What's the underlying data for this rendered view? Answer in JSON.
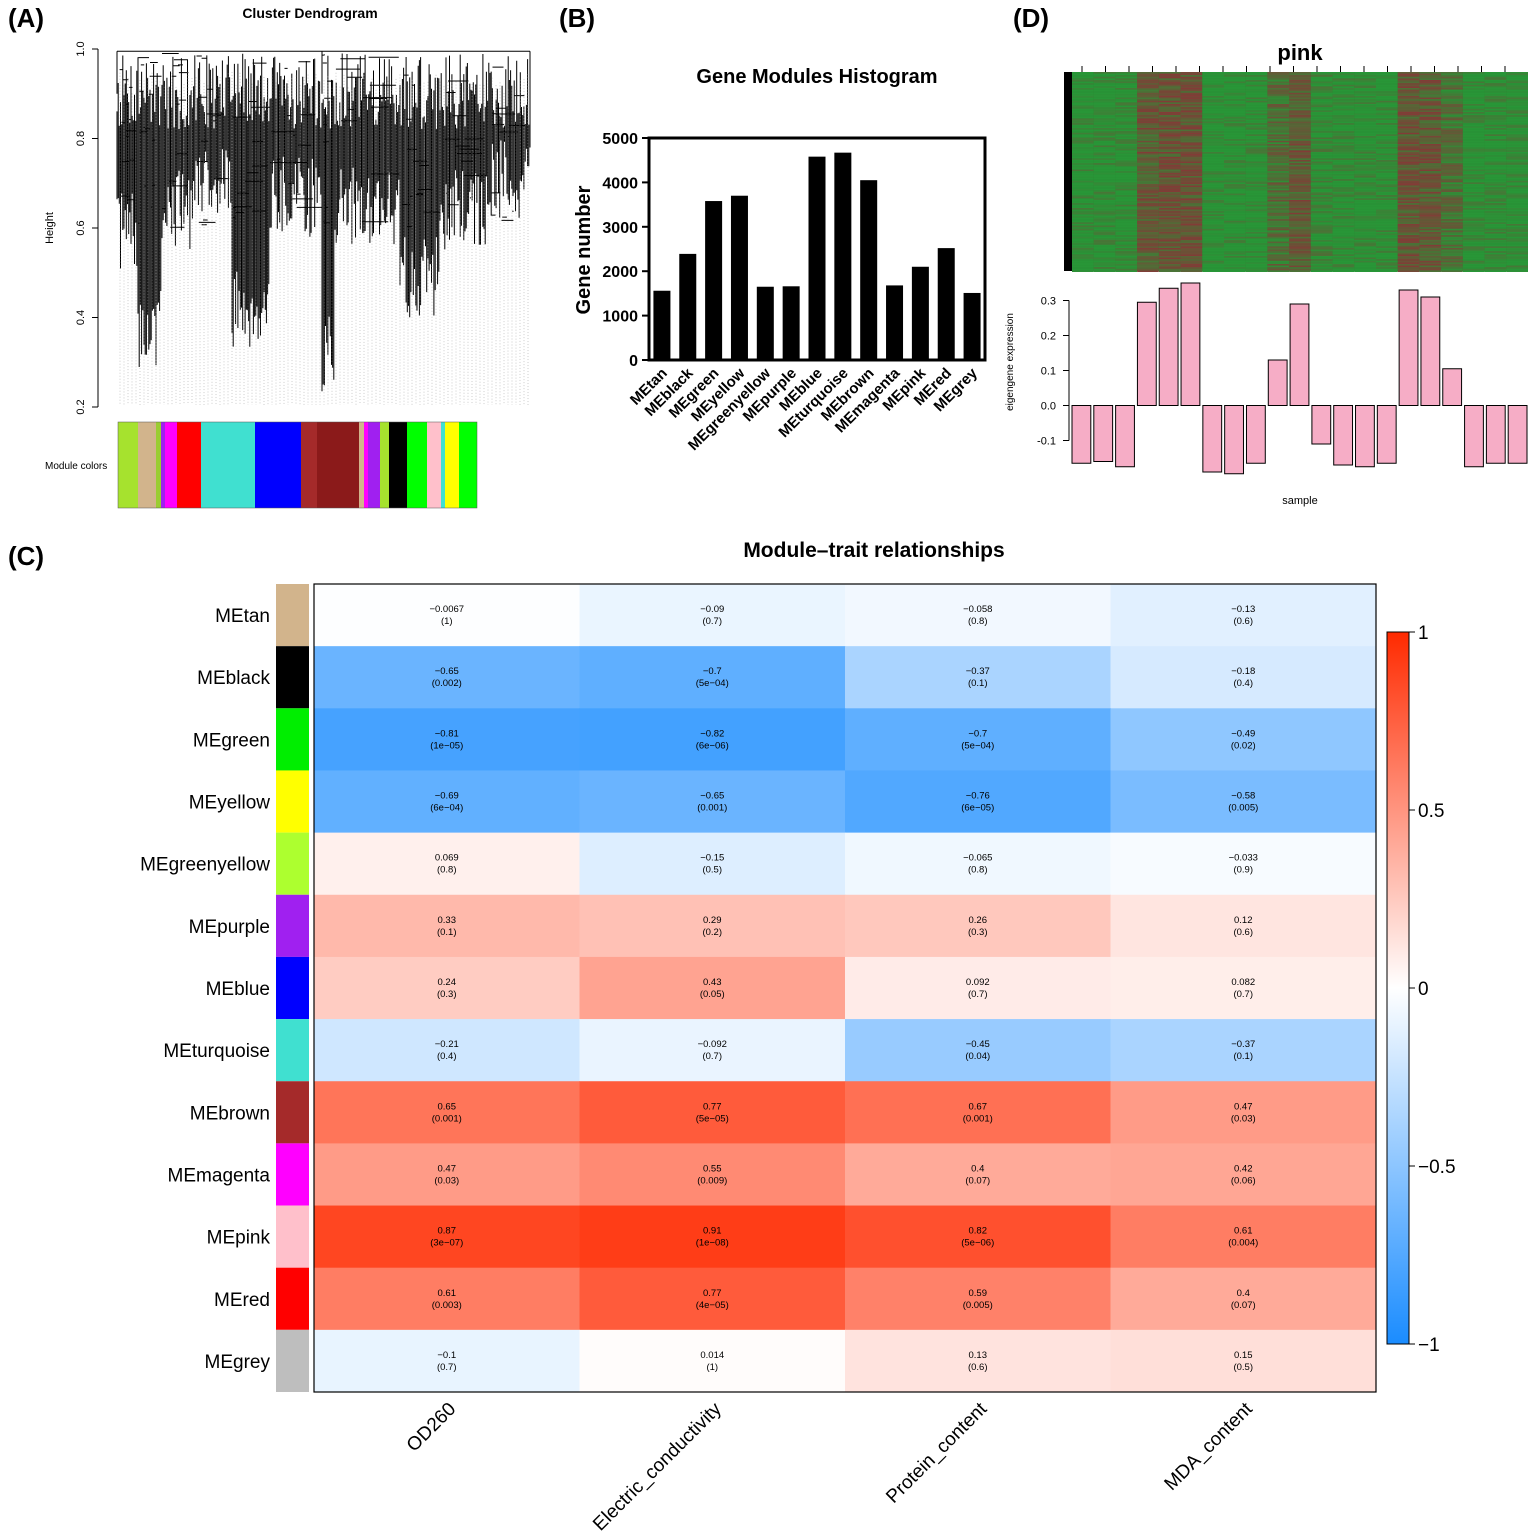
{
  "panels": {
    "A": {
      "label": "(A)",
      "title": "Cluster Dendrogram",
      "ylabel": "Height",
      "yticks": [
        "0.2",
        "0.4",
        "0.6",
        "0.8",
        "1.0"
      ],
      "ylim": [
        0.2,
        1.0
      ],
      "module_colors_label": "Module colors"
    },
    "B": {
      "label": "(B)"
    },
    "C": {
      "label": "(C)"
    },
    "D": {
      "label": "(D)"
    }
  },
  "colors": {
    "bar_black": "#000000",
    "pink_bar": "#f6adc6",
    "heat_neg": "#1a8cff",
    "heat_pos": "#ff2a00",
    "heatmap_green": "#2e8b2e",
    "heatmap_red": "#8b2e2e"
  },
  "chart_data": [
    {
      "id": "A",
      "type": "dendrogram",
      "title": "Cluster Dendrogram",
      "ylabel": "Height",
      "ylim": [
        0.2,
        1.0
      ],
      "module_color_segments": [
        {
          "color": "#a6e22e",
          "width": 20
        },
        {
          "color": "#d2b48c",
          "width": 18
        },
        {
          "color": "#9acd32",
          "width": 5
        },
        {
          "color": "#a020f0",
          "width": 4
        },
        {
          "color": "#ff00ff",
          "width": 12
        },
        {
          "color": "#ff0000",
          "width": 24
        },
        {
          "color": "#40e0d0",
          "width": 54
        },
        {
          "color": "#0000ff",
          "width": 46
        },
        {
          "color": "#a52a2a",
          "width": 16
        },
        {
          "color": "#8b1a1a",
          "width": 42
        },
        {
          "color": "#d2b48c",
          "width": 5
        },
        {
          "color": "#ff00ff",
          "width": 4
        },
        {
          "color": "#a020f0",
          "width": 12
        },
        {
          "color": "#a6e22e",
          "width": 9
        },
        {
          "color": "#000000",
          "width": 18
        },
        {
          "color": "#00ff00",
          "width": 20
        },
        {
          "color": "#ffc0cb",
          "width": 14
        },
        {
          "color": "#40e0d0",
          "width": 4
        },
        {
          "color": "#ffff00",
          "width": 14
        },
        {
          "color": "#00ff00",
          "width": 18
        }
      ]
    },
    {
      "id": "B",
      "type": "bar",
      "title": "Gene Modules Histogram",
      "ylabel": "Gene number",
      "xlabel": "",
      "ylim": [
        0,
        5000
      ],
      "yticks": [
        0,
        1000,
        2000,
        3000,
        4000,
        5000
      ],
      "categories": [
        "MEtan",
        "MEblack",
        "MEgreen",
        "MEyellow",
        "MEgreenyellow",
        "MEpurple",
        "MEblue",
        "MEturquoise",
        "MEbrown",
        "MEmagenta",
        "MEpink",
        "MEred",
        "MEgrey"
      ],
      "values": [
        1560,
        2390,
        3580,
        3700,
        1650,
        1660,
        4580,
        4670,
        4050,
        1680,
        2100,
        2520,
        1510
      ]
    },
    {
      "id": "D",
      "type": "bar",
      "title": "pink",
      "ylabel": "eigengene expression",
      "xlabel": "sample",
      "ylim": [
        -0.15,
        0.35
      ],
      "yticks": [
        -0.1,
        0.0,
        0.1,
        0.2,
        0.3
      ],
      "values": [
        -0.165,
        -0.16,
        -0.175,
        0.295,
        0.335,
        0.35,
        -0.19,
        -0.195,
        -0.165,
        0.13,
        0.29,
        -0.11,
        -0.17,
        -0.175,
        -0.165,
        0.33,
        0.31,
        0.105,
        -0.175,
        -0.165,
        -0.165
      ]
    },
    {
      "id": "C",
      "type": "heatmap",
      "title": "Module–trait relationships",
      "rows": [
        "MEtan",
        "MEblack",
        "MEgreen",
        "MEyellow",
        "MEgreenyellow",
        "MEpurple",
        "MEblue",
        "MEturquoise",
        "MEbrown",
        "MEmagenta",
        "MEpink",
        "MEred",
        "MEgrey"
      ],
      "row_colors": [
        "#d2b48c",
        "#000000",
        "#00ee00",
        "#ffff00",
        "#adff2f",
        "#a020f0",
        "#0000ff",
        "#40e0d0",
        "#a52a2a",
        "#ff00ff",
        "#ffc0cb",
        "#ff0000",
        "#bebebe"
      ],
      "columns": [
        "OD260",
        "Electric_conductivity",
        "Protein_content",
        "MDA_content"
      ],
      "values": [
        [
          -0.0067,
          -0.09,
          -0.058,
          -0.13
        ],
        [
          -0.65,
          -0.7,
          -0.37,
          -0.18
        ],
        [
          -0.81,
          -0.82,
          -0.7,
          -0.49
        ],
        [
          -0.69,
          -0.65,
          -0.76,
          -0.58
        ],
        [
          0.069,
          -0.15,
          -0.065,
          -0.033
        ],
        [
          0.33,
          0.29,
          0.26,
          0.12
        ],
        [
          0.24,
          0.43,
          0.092,
          0.082
        ],
        [
          -0.21,
          -0.092,
          -0.45,
          -0.37
        ],
        [
          0.65,
          0.77,
          0.67,
          0.47
        ],
        [
          0.47,
          0.55,
          0.4,
          0.42
        ],
        [
          0.87,
          0.91,
          0.82,
          0.61
        ],
        [
          0.61,
          0.77,
          0.59,
          0.4
        ],
        [
          -0.1,
          0.014,
          0.13,
          0.15
        ]
      ],
      "labels": [
        [
          "−0.0067",
          "−0.09",
          "−0.058",
          "−0.13"
        ],
        [
          "−0.65",
          "−0.7",
          "−0.37",
          "−0.18"
        ],
        [
          "−0.81",
          "−0.82",
          "−0.7",
          "−0.49"
        ],
        [
          "−0.69",
          "−0.65",
          "−0.76",
          "−0.58"
        ],
        [
          "0.069",
          "−0.15",
          "−0.065",
          "−0.033"
        ],
        [
          "0.33",
          "0.29",
          "0.26",
          "0.12"
        ],
        [
          "0.24",
          "0.43",
          "0.092",
          "0.082"
        ],
        [
          "−0.21",
          "−0.092",
          "−0.45",
          "−0.37"
        ],
        [
          "0.65",
          "0.77",
          "0.67",
          "0.47"
        ],
        [
          "0.47",
          "0.55",
          "0.4",
          "0.42"
        ],
        [
          "0.87",
          "0.91",
          "0.82",
          "0.61"
        ],
        [
          "0.61",
          "0.77",
          "0.59",
          "0.4"
        ],
        [
          "−0.1",
          "0.014",
          "0.13",
          "0.15"
        ]
      ],
      "pvalues": [
        [
          "(1)",
          "(0.7)",
          "(0.8)",
          "(0.6)"
        ],
        [
          "(0.002)",
          "(5e−04)",
          "(0.1)",
          "(0.4)"
        ],
        [
          "(1e−05)",
          "(6e−06)",
          "(5e−04)",
          "(0.02)"
        ],
        [
          "(6e−04)",
          "(0.001)",
          "(6e−05)",
          "(0.005)"
        ],
        [
          "(0.8)",
          "(0.5)",
          "(0.8)",
          "(0.9)"
        ],
        [
          "(0.1)",
          "(0.2)",
          "(0.3)",
          "(0.6)"
        ],
        [
          "(0.3)",
          "(0.05)",
          "(0.7)",
          "(0.7)"
        ],
        [
          "(0.4)",
          "(0.7)",
          "(0.04)",
          "(0.1)"
        ],
        [
          "(0.001)",
          "(5e−05)",
          "(0.001)",
          "(0.03)"
        ],
        [
          "(0.03)",
          "(0.009)",
          "(0.07)",
          "(0.06)"
        ],
        [
          "(3e−07)",
          "(1e−08)",
          "(5e−06)",
          "(0.004)"
        ],
        [
          "(0.003)",
          "(4e−05)",
          "(0.005)",
          "(0.07)"
        ],
        [
          "(0.7)",
          "(1)",
          "(0.6)",
          "(0.5)"
        ]
      ],
      "legend_ticks": [
        "1",
        "0.5",
        "0",
        "−0.5",
        "−1"
      ],
      "legend_range": [
        -1,
        1
      ]
    }
  ]
}
